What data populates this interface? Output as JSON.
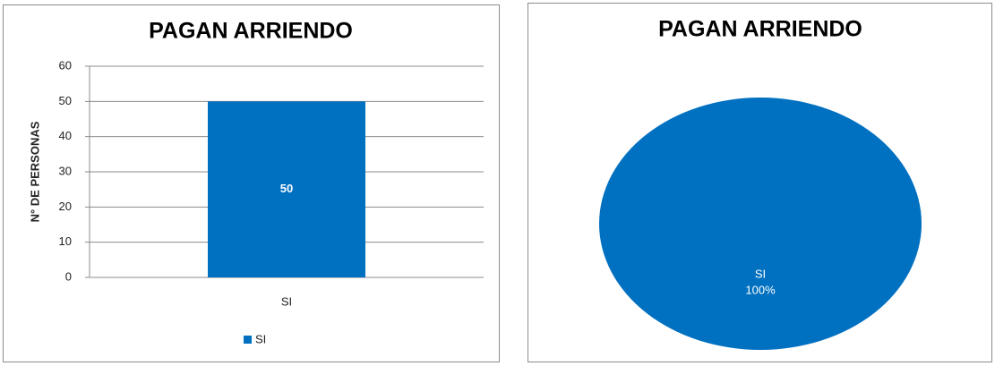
{
  "chart_data": [
    {
      "type": "bar",
      "title": "PAGAN ARRIENDO",
      "ylabel": "N° DE PERSONAS",
      "categories": [
        "SI"
      ],
      "series": [
        {
          "name": "SI",
          "color": "#0070C0",
          "values": [
            50
          ]
        }
      ],
      "ylim": [
        0,
        60
      ],
      "yticks": [
        0,
        10,
        20,
        30,
        40,
        50,
        60
      ],
      "grid": true,
      "legend": "bottom"
    },
    {
      "type": "pie",
      "title": "PAGAN ARRIENDO",
      "categories": [
        "SI"
      ],
      "values": [
        100
      ],
      "value_labels": [
        "100%"
      ],
      "colors": [
        "#0070C0"
      ]
    }
  ]
}
